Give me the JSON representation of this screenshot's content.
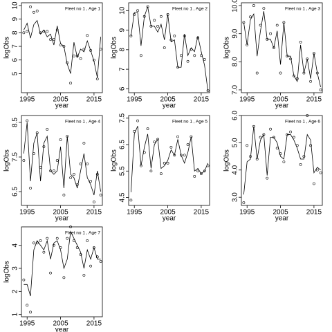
{
  "chart_data": [
    {
      "type": "line",
      "title": "Fleet no 1 , Age 1",
      "xlabel": "year",
      "ylabel": "logObs",
      "x": [
        1994,
        1995,
        1996,
        1997,
        1998,
        1999,
        2000,
        2001,
        2002,
        2003,
        2004,
        2005,
        2006,
        2007,
        2008,
        2009,
        2010,
        2011,
        2012,
        2013,
        2014,
        2015,
        2016,
        2017
      ],
      "xlim": [
        1993.3,
        2017.5
      ],
      "xticks": [
        1995,
        2005,
        2015
      ],
      "ylim": [
        3.6,
        10.2
      ],
      "yticks": [
        5,
        6,
        7,
        8,
        9,
        10
      ],
      "series": [
        {
          "style": "points",
          "color": "#000000",
          "values": [
            8.0,
            8.1,
            9.9,
            9.5,
            9.6,
            8.0,
            8.1,
            8.1,
            7.5,
            7.5,
            8.2,
            7.1,
            7.0,
            5.8,
            4.3,
            6.3,
            6.3,
            6.1,
            6.8,
            7.8,
            6.7,
            6.0,
            4.6,
            6.8
          ]
        },
        {
          "style": "line",
          "color": "#000000",
          "values": [
            8.2,
            8.7,
            7.6,
            8.6,
            8.9,
            7.9,
            8.2,
            7.7,
            7.9,
            7.1,
            8.5,
            7.2,
            7.0,
            5.7,
            5.0,
            7.3,
            6.2,
            6.8,
            6.6,
            7.4,
            6.7,
            5.9,
            4.7,
            7.7
          ]
        }
      ]
    },
    {
      "type": "line",
      "title": "Fleet no 1 , Age 2",
      "xlabel": "year",
      "ylabel": "logObs",
      "x": [
        1994,
        1995,
        1996,
        1997,
        1998,
        1999,
        2000,
        2001,
        2002,
        2003,
        2004,
        2005,
        2006,
        2007,
        2008,
        2009,
        2010,
        2011,
        2012,
        2013,
        2014,
        2015,
        2016,
        2017
      ],
      "xlim": [
        1993.3,
        2017.5
      ],
      "xticks": [
        1995,
        2005,
        2015
      ],
      "ylim": [
        5.8,
        10.4
      ],
      "yticks": [
        6,
        7,
        8,
        9,
        10
      ],
      "series": [
        {
          "style": "points",
          "color": "#000000",
          "values": [
            8.7,
            9.8,
            10.0,
            7.7,
            9.7,
            10.2,
            9.2,
            9.5,
            9.2,
            9.7,
            8.1,
            9.8,
            8.5,
            8.7,
            7.1,
            7.7,
            8.7,
            7.4,
            8.0,
            7.7,
            8.6,
            7.7,
            7.5,
            5.9
          ]
        },
        {
          "style": "line",
          "color": "#000000",
          "values": [
            8.7,
            9.9,
            9.9,
            8.2,
            9.7,
            10.2,
            9.2,
            9.2,
            8.9,
            9.3,
            8.5,
            9.8,
            8.4,
            8.5,
            7.1,
            7.1,
            8.8,
            7.7,
            8.1,
            7.9,
            8.7,
            7.9,
            7.2,
            5.9
          ]
        }
      ]
    },
    {
      "type": "line",
      "title": "Fleet no 1 , Age 3",
      "xlabel": "year",
      "ylabel": "logObs",
      "x": [
        1994,
        1995,
        1996,
        1997,
        1998,
        1999,
        2000,
        2001,
        2002,
        2003,
        2004,
        2005,
        2006,
        2007,
        2008,
        2009,
        2010,
        2011,
        2012,
        2013,
        2014,
        2015,
        2016,
        2017
      ],
      "xlim": [
        1993.3,
        2017.5
      ],
      "xticks": [
        1995,
        2005,
        2015
      ],
      "ylim": [
        6.9,
        10.1
      ],
      "yticks": [
        {
          "value": 7,
          "label": "7.0"
        },
        {
          "value": 8,
          "label": "8.0"
        },
        {
          "value": 9,
          "label": "9.0"
        },
        {
          "value": 10,
          "label": "10.0"
        }
      ],
      "series": [
        {
          "style": "points",
          "color": "#000000",
          "values": [
            9.4,
            8.6,
            9.6,
            10.0,
            7.6,
            9.3,
            9.9,
            8.8,
            9.0,
            8.5,
            9.3,
            7.6,
            9.4,
            8.2,
            8.1,
            7.5,
            7.4,
            8.7,
            7.6,
            8.1,
            7.3,
            8.3,
            7.6,
            7.0
          ]
        },
        {
          "style": "line",
          "color": "#000000",
          "values": [
            9.4,
            8.6,
            9.5,
            9.7,
            8.2,
            9.1,
            9.8,
            8.8,
            8.8,
            8.5,
            9.1,
            7.9,
            9.4,
            8.2,
            8.2,
            7.5,
            7.3,
            8.6,
            7.6,
            8.1,
            7.4,
            8.3,
            7.6,
            7.1
          ]
        }
      ]
    },
    {
      "type": "line",
      "title": "Fleet no 1 , Age 4",
      "xlabel": "year",
      "ylabel": "logObs",
      "x": [
        1994,
        1995,
        1996,
        1997,
        1998,
        1999,
        2000,
        2001,
        2002,
        2003,
        2004,
        2005,
        2006,
        2007,
        2008,
        2009,
        2010,
        2011,
        2012,
        2013,
        2014,
        2015,
        2016,
        2017
      ],
      "xlim": [
        1993.3,
        2017.5
      ],
      "xticks": [
        1995,
        2005,
        2015
      ],
      "ylim": [
        6.1,
        8.7
      ],
      "yticks": [
        6.5,
        7.5,
        8.5
      ],
      "series": [
        {
          "style": "points",
          "color": "#000000",
          "values": [
            7.4,
            8.55,
            6.6,
            7.6,
            8.2,
            7.2,
            7.8,
            8.3,
            7.1,
            7.1,
            7.4,
            8.0,
            6.4,
            8.1,
            6.9,
            7.0,
            6.7,
            7.3,
            7.9,
            7.3,
            6.8,
            6.2,
            7.0,
            6.4
          ]
        },
        {
          "style": "line",
          "color": "#000000",
          "values": [
            7.6,
            8.5,
            6.8,
            7.9,
            8.2,
            6.8,
            7.9,
            8.1,
            7.1,
            7.0,
            7.1,
            7.8,
            6.6,
            8.1,
            7.0,
            6.9,
            6.6,
            7.1,
            7.6,
            6.9,
            6.7,
            6.4,
            7.1,
            6.5
          ]
        }
      ]
    },
    {
      "type": "line",
      "title": "Fleet no 1 , Age 5",
      "xlabel": "year",
      "ylabel": "logObs",
      "x": [
        1994,
        1995,
        1996,
        1997,
        1998,
        1999,
        2000,
        2001,
        2002,
        2003,
        2004,
        2005,
        2006,
        2007,
        2008,
        2009,
        2010,
        2011,
        2012,
        2013,
        2014,
        2015,
        2016,
        2017
      ],
      "xlim": [
        1993.3,
        2017.5
      ],
      "xticks": [
        1995,
        2005,
        2015
      ],
      "ylim": [
        4.2,
        7.6
      ],
      "yticks": [
        4.5,
        5.5,
        6.5,
        7.5
      ],
      "series": [
        {
          "style": "points",
          "color": "#000000",
          "values": [
            4.4,
            7.0,
            7.4,
            5.7,
            6.2,
            7.1,
            5.5,
            6.6,
            6.7,
            5.4,
            5.8,
            5.8,
            6.4,
            6.1,
            6.8,
            6.1,
            6.1,
            6.5,
            6.8,
            5.3,
            5.5,
            5.4,
            5.5,
            5.7
          ]
        },
        {
          "style": "line",
          "color": "#000000",
          "values": [
            4.7,
            6.9,
            7.2,
            5.7,
            6.4,
            6.9,
            5.6,
            6.5,
            6.7,
            5.6,
            5.7,
            5.9,
            6.3,
            6.1,
            6.7,
            6.1,
            5.8,
            6.2,
            6.8,
            5.5,
            5.6,
            5.4,
            5.5,
            5.8
          ]
        }
      ]
    },
    {
      "type": "line",
      "title": "Fleet no 1 , Age 6",
      "xlabel": "year",
      "ylabel": "logObs",
      "x": [
        1994,
        1995,
        1996,
        1997,
        1998,
        1999,
        2000,
        2001,
        2002,
        2003,
        2004,
        2005,
        2006,
        2007,
        2008,
        2009,
        2010,
        2011,
        2012,
        2013,
        2014,
        2015,
        2016,
        2017
      ],
      "xlim": [
        1993.3,
        2017.5
      ],
      "xticks": [
        1995,
        2005,
        2015
      ],
      "ylim": [
        2.7,
        6.0
      ],
      "yticks": [
        {
          "value": 3,
          "label": "3.0"
        },
        {
          "value": 4,
          "label": "4.0"
        },
        {
          "value": 5,
          "label": "5.0"
        },
        {
          "value": 6,
          "label": "6.0"
        }
      ],
      "series": [
        {
          "style": "points",
          "color": "#000000",
          "values": [
            2.8,
            4.9,
            4.5,
            5.6,
            4.4,
            5.2,
            5.3,
            3.7,
            5.5,
            5.2,
            4.8,
            4.6,
            4.3,
            5.3,
            5.4,
            5.2,
            4.9,
            4.2,
            4.5,
            6.0,
            4.9,
            3.5,
            4.0,
            3.9
          ]
        },
        {
          "style": "line",
          "color": "#000000",
          "values": [
            3.1,
            4.3,
            4.4,
            5.6,
            4.4,
            5.1,
            5.3,
            3.8,
            5.2,
            5.2,
            5.0,
            4.5,
            4.4,
            5.3,
            5.3,
            5.1,
            4.8,
            4.4,
            4.4,
            5.3,
            5.1,
            3.9,
            4.1,
            4.0
          ]
        }
      ]
    },
    {
      "type": "line",
      "title": "Fleet no 1 , Age 7",
      "xlabel": "year",
      "ylabel": "logObs",
      "x": [
        1994,
        1995,
        1996,
        1997,
        1998,
        1999,
        2000,
        2001,
        2002,
        2003,
        2004,
        2005,
        2006,
        2007,
        2008,
        2009,
        2010,
        2011,
        2012,
        2013,
        2014,
        2015,
        2016,
        2017
      ],
      "xlim": [
        1993.3,
        2017.5
      ],
      "xticks": [
        1995,
        2005,
        2015
      ],
      "ylim": [
        0.9,
        4.8
      ],
      "yticks": [
        1,
        2,
        3,
        4
      ],
      "series": [
        {
          "style": "points",
          "color": "#000000",
          "values": [
            2.5,
            1.4,
            1.1,
            4.1,
            4.1,
            4.2,
            3.7,
            4.3,
            2.8,
            4.0,
            4.3,
            3.9,
            2.6,
            4.3,
            4.8,
            4.2,
            3.9,
            3.6,
            2.7,
            4.2,
            3.1,
            3.9,
            3.5,
            3.3
          ]
        },
        {
          "style": "line",
          "color": "#000000",
          "values": [
            2.3,
            2.3,
            1.8,
            3.8,
            4.2,
            4.0,
            3.8,
            4.2,
            3.4,
            4.1,
            4.2,
            3.8,
            3.0,
            3.4,
            4.6,
            4.3,
            4.0,
            3.7,
            3.0,
            3.8,
            3.4,
            3.9,
            3.4,
            3.4
          ]
        }
      ]
    }
  ]
}
